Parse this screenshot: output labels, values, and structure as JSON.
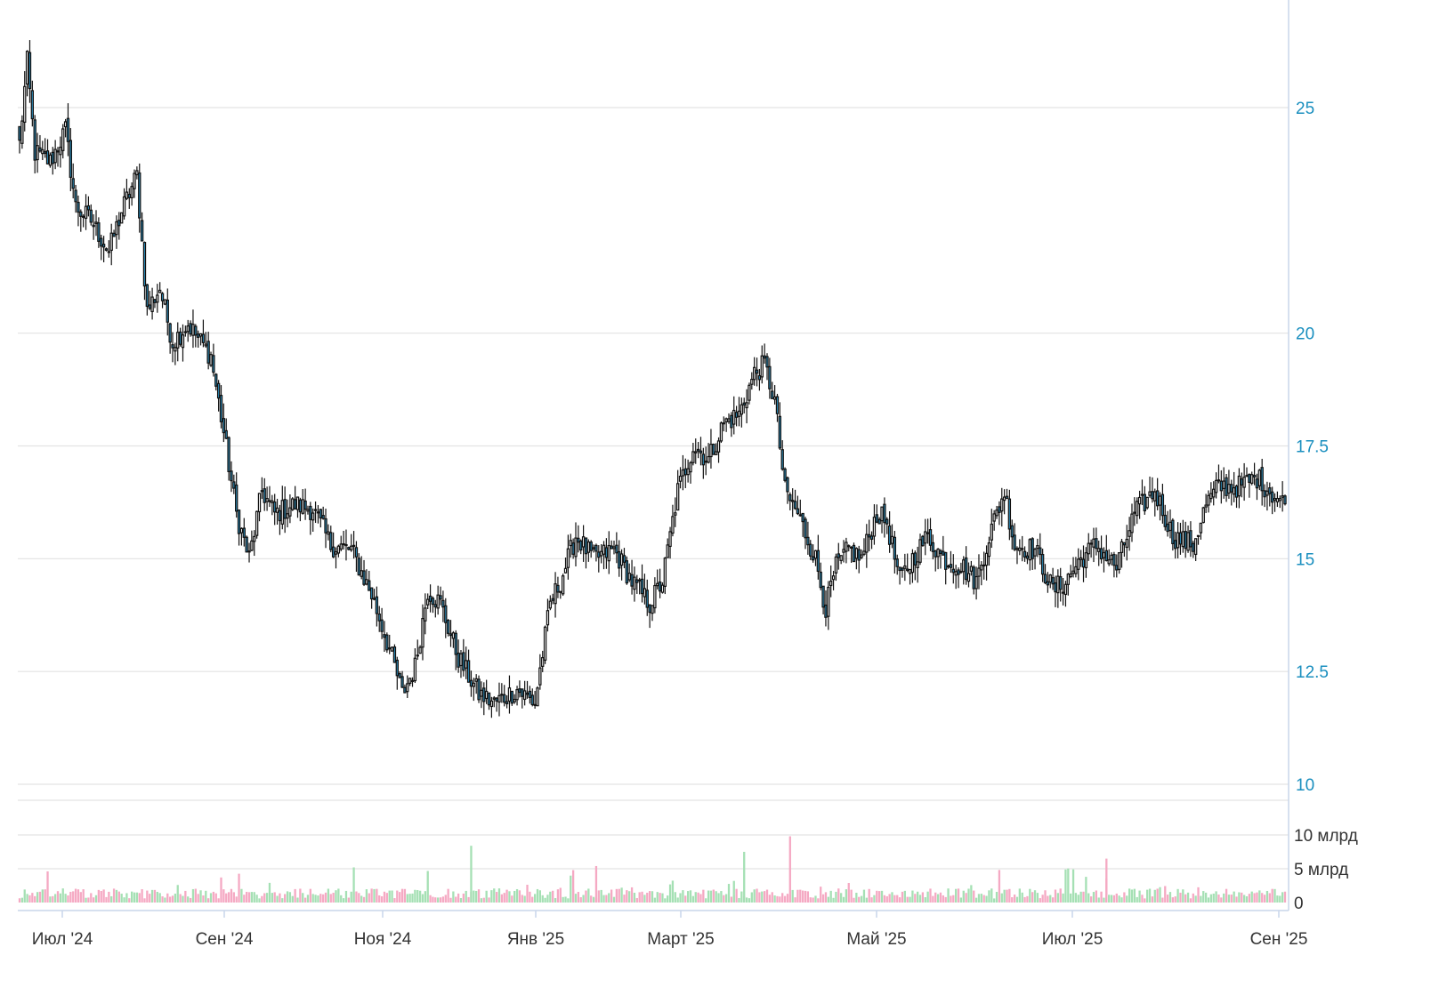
{
  "chart_data": {
    "type": "candlestick",
    "price_axis": {
      "ticks": [
        10,
        12.5,
        15,
        17.5,
        20,
        25
      ],
      "tick_labels": [
        "10",
        "12.5",
        "15",
        "17.5",
        "20",
        "25"
      ],
      "range": [
        10,
        27
      ]
    },
    "volume_axis": {
      "ticks": [
        0,
        5,
        10
      ],
      "tick_labels": [
        "0",
        "5 млрд",
        "10 млрд"
      ],
      "range": [
        0,
        12
      ]
    },
    "x_axis": {
      "tick_labels": [
        "Июл '24",
        "Сен '24",
        "Ноя '24",
        "Янв '25",
        "Март '25",
        "Май '25",
        "Июл '25",
        "Сен '25"
      ]
    },
    "colors": {
      "candle_down": "#2c8fbd",
      "candle_up": "#ffffff",
      "volume_up": "#a5e0b4",
      "volume_down": "#f5a9c3",
      "axis_text_price": "#1a8fbf"
    },
    "price_path": [
      [
        0,
        24.2
      ],
      [
        3,
        26.0
      ],
      [
        6,
        24.0
      ],
      [
        12,
        23.8
      ],
      [
        18,
        24.5
      ],
      [
        22,
        22.8
      ],
      [
        28,
        22.5
      ],
      [
        35,
        21.8
      ],
      [
        40,
        22.7
      ],
      [
        46,
        23.5
      ],
      [
        50,
        20.5
      ],
      [
        55,
        21.0
      ],
      [
        60,
        19.8
      ],
      [
        66,
        20.2
      ],
      [
        75,
        19.5
      ],
      [
        80,
        17.8
      ],
      [
        85,
        16.0
      ],
      [
        90,
        15.0
      ],
      [
        95,
        16.5
      ],
      [
        100,
        16.0
      ],
      [
        108,
        16.2
      ],
      [
        115,
        16.1
      ],
      [
        122,
        15.3
      ],
      [
        130,
        15.2
      ],
      [
        138,
        14.2
      ],
      [
        145,
        13.0
      ],
      [
        150,
        12.0
      ],
      [
        155,
        12.6
      ],
      [
        160,
        14.3
      ],
      [
        165,
        14.0
      ],
      [
        172,
        12.8
      ],
      [
        180,
        12.0
      ],
      [
        186,
        11.8
      ],
      [
        195,
        12.1
      ],
      [
        202,
        11.8
      ],
      [
        208,
        14.0
      ],
      [
        212,
        14.5
      ],
      [
        218,
        15.5
      ],
      [
        225,
        15.0
      ],
      [
        233,
        15.2
      ],
      [
        240,
        14.5
      ],
      [
        247,
        14.0
      ],
      [
        252,
        14.5
      ],
      [
        258,
        16.5
      ],
      [
        264,
        17.5
      ],
      [
        270,
        17.2
      ],
      [
        276,
        18.0
      ],
      [
        282,
        18.2
      ],
      [
        288,
        19.1
      ],
      [
        292,
        19.3
      ],
      [
        296,
        18.5
      ],
      [
        300,
        16.5
      ],
      [
        305,
        16.0
      ],
      [
        312,
        15.0
      ],
      [
        316,
        13.9
      ],
      [
        320,
        14.8
      ],
      [
        325,
        15.2
      ],
      [
        330,
        15.0
      ],
      [
        336,
        16.0
      ],
      [
        340,
        15.8
      ],
      [
        345,
        14.5
      ],
      [
        350,
        15.0
      ],
      [
        356,
        15.5
      ],
      [
        362,
        15.0
      ],
      [
        370,
        14.8
      ],
      [
        375,
        14.5
      ],
      [
        380,
        15.5
      ],
      [
        386,
        16.5
      ],
      [
        390,
        15.3
      ],
      [
        398,
        15.2
      ],
      [
        405,
        14.3
      ],
      [
        410,
        14.5
      ],
      [
        416,
        15.0
      ],
      [
        422,
        15.3
      ],
      [
        430,
        14.8
      ],
      [
        437,
        16.0
      ],
      [
        445,
        16.5
      ],
      [
        452,
        15.5
      ],
      [
        460,
        15.3
      ],
      [
        465,
        16.2
      ],
      [
        470,
        16.6
      ],
      [
        478,
        16.6
      ],
      [
        485,
        16.8
      ],
      [
        490,
        16.5
      ],
      [
        496,
        16.2
      ]
    ]
  }
}
